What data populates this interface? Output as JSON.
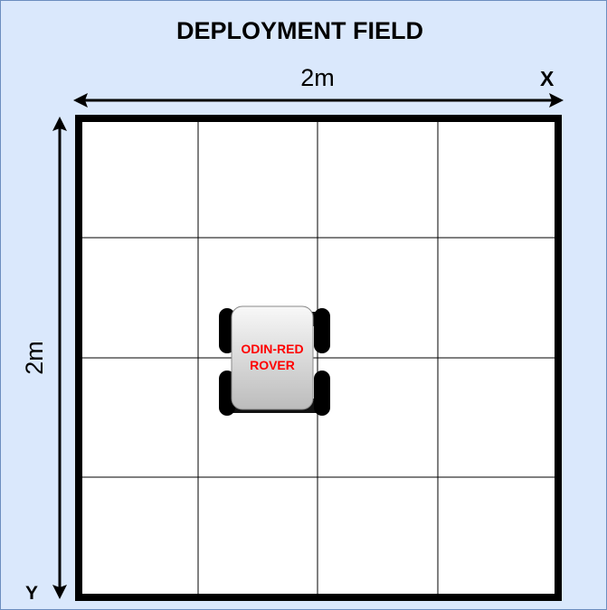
{
  "title": "DEPLOYMENT FIELD",
  "axes": {
    "x_dimension": "2m",
    "x_label": "X",
    "y_dimension": "2m",
    "y_label": "Y"
  },
  "field": {
    "rows": 4,
    "columns": 4
  },
  "rover": {
    "line1": "ODIN-RED",
    "line2": "ROVER"
  },
  "colors": {
    "background": "#dae8fc",
    "border": "#6c8ebf",
    "rover_label": "#ff0000"
  }
}
